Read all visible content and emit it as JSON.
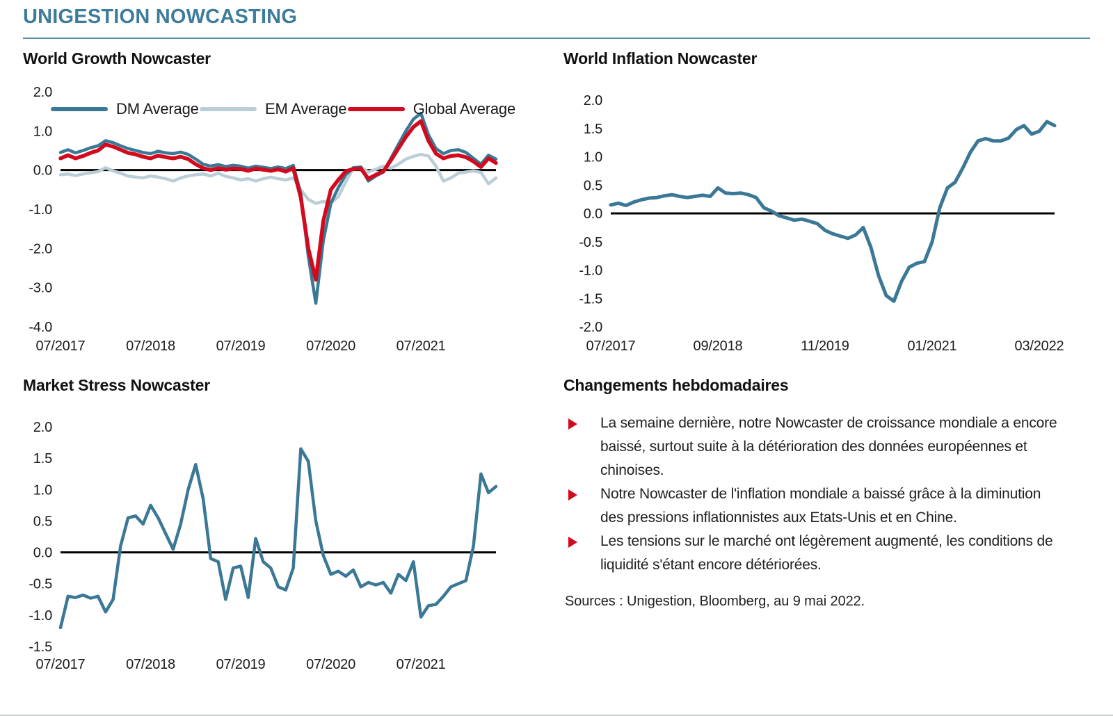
{
  "page": {
    "title": "UNIGESTION NOWCASTING"
  },
  "palette": {
    "accent_title": "#3e7c9b",
    "header_rule": "#5b8ba6",
    "teal_line": "#3a7895",
    "light_blue_line": "#bbcdd6",
    "red_line": "#d20a1e",
    "axis_black": "#000000"
  },
  "chart_data": [
    {
      "id": "world-growth-nowcaster",
      "type": "line",
      "title": "World Growth Nowcaster",
      "ylim": [
        -4.0,
        2.0
      ],
      "yticks": [
        "2.0",
        "1.0",
        "0.0",
        "-1.0",
        "-2.0",
        "-3.0",
        "-4.0"
      ],
      "x_months": 58,
      "x_tick_months": [
        0,
        12,
        24,
        36,
        48
      ],
      "x_tick_labels": [
        "07/2017",
        "07/2018",
        "07/2019",
        "07/2020",
        "07/2021"
      ],
      "grid": false,
      "zero_line": true,
      "legend_position": "top-inside",
      "series": [
        {
          "name": "DM Average",
          "color": "#3a7895",
          "stroke_width": 4.5,
          "layer": 1,
          "values": [
            0.45,
            0.52,
            0.44,
            0.5,
            0.57,
            0.62,
            0.75,
            0.7,
            0.62,
            0.55,
            0.5,
            0.45,
            0.42,
            0.48,
            0.44,
            0.42,
            0.46,
            0.4,
            0.28,
            0.15,
            0.1,
            0.14,
            0.09,
            0.12,
            0.1,
            0.05,
            0.1,
            0.07,
            0.04,
            0.08,
            0.04,
            0.12,
            -0.6,
            -2.2,
            -3.4,
            -1.8,
            -0.85,
            -0.45,
            -0.12,
            0.06,
            0.08,
            -0.28,
            -0.15,
            -0.05,
            0.3,
            0.65,
            1.0,
            1.3,
            1.45,
            0.9,
            0.55,
            0.42,
            0.5,
            0.52,
            0.45,
            0.3,
            0.15,
            0.38,
            0.28
          ]
        },
        {
          "name": "EM Average",
          "color": "#bbcdd6",
          "stroke_width": 4.5,
          "layer": 0,
          "values": [
            -0.12,
            -0.1,
            -0.14,
            -0.1,
            -0.07,
            -0.04,
            0.06,
            -0.02,
            -0.08,
            -0.15,
            -0.18,
            -0.2,
            -0.15,
            -0.18,
            -0.22,
            -0.28,
            -0.2,
            -0.15,
            -0.12,
            -0.1,
            -0.15,
            -0.08,
            -0.16,
            -0.2,
            -0.25,
            -0.22,
            -0.28,
            -0.22,
            -0.18,
            -0.22,
            -0.25,
            -0.2,
            -0.5,
            -0.75,
            -0.85,
            -0.8,
            -0.85,
            -0.68,
            -0.3,
            0.05,
            0.08,
            -0.05,
            0.02,
            0.1,
            0.05,
            0.15,
            0.28,
            0.35,
            0.4,
            0.36,
            0.1,
            -0.28,
            -0.2,
            -0.08,
            -0.05,
            -0.02,
            -0.06,
            -0.35,
            -0.2
          ]
        },
        {
          "name": "Global Average",
          "color": "#d20a1e",
          "stroke_width": 5.5,
          "layer": 2,
          "values": [
            0.3,
            0.38,
            0.3,
            0.36,
            0.44,
            0.5,
            0.65,
            0.6,
            0.52,
            0.44,
            0.4,
            0.34,
            0.3,
            0.37,
            0.33,
            0.3,
            0.34,
            0.28,
            0.15,
            0.05,
            0.0,
            0.05,
            0.01,
            0.04,
            0.03,
            -0.02,
            0.04,
            0.01,
            -0.02,
            0.02,
            -0.04,
            0.05,
            -0.7,
            -2.0,
            -2.8,
            -1.3,
            -0.5,
            -0.25,
            -0.03,
            0.03,
            0.04,
            -0.22,
            -0.12,
            -0.03,
            0.25,
            0.55,
            0.85,
            1.1,
            1.25,
            0.75,
            0.42,
            0.3,
            0.36,
            0.38,
            0.33,
            0.22,
            0.08,
            0.3,
            0.18
          ]
        }
      ]
    },
    {
      "id": "world-inflation-nowcaster",
      "type": "line",
      "title": "World Inflation Nowcaster",
      "ylim": [
        -2.0,
        2.0
      ],
      "yticks": [
        "2.0",
        "1.5",
        "1.0",
        "0.5",
        "0.0",
        "-0.5",
        "-1.0",
        "-1.5",
        "-2.0"
      ],
      "x_months": 58,
      "x_tick_months": [
        0,
        14,
        28,
        42,
        56
      ],
      "x_tick_labels": [
        "07/2017",
        "09/2018",
        "11/2019",
        "01/2021",
        "03/2022"
      ],
      "grid": false,
      "zero_line": true,
      "legend_position": "none",
      "series": [
        {
          "name": "World Inflation Nowcaster",
          "color": "#3a7895",
          "stroke_width": 5,
          "layer": 1,
          "values": [
            0.15,
            0.18,
            0.14,
            0.2,
            0.24,
            0.27,
            0.28,
            0.31,
            0.33,
            0.3,
            0.28,
            0.3,
            0.32,
            0.3,
            0.45,
            0.36,
            0.35,
            0.36,
            0.33,
            0.28,
            0.1,
            0.04,
            -0.04,
            -0.08,
            -0.12,
            -0.1,
            -0.14,
            -0.18,
            -0.3,
            -0.36,
            -0.4,
            -0.44,
            -0.38,
            -0.25,
            -0.6,
            -1.1,
            -1.45,
            -1.55,
            -1.2,
            -0.95,
            -0.88,
            -0.85,
            -0.5,
            0.1,
            0.45,
            0.55,
            0.8,
            1.08,
            1.28,
            1.32,
            1.28,
            1.28,
            1.33,
            1.48,
            1.55,
            1.4,
            1.45,
            1.62,
            1.55
          ]
        }
      ]
    },
    {
      "id": "market-stress-nowcaster",
      "type": "line",
      "title": "Market Stress Nowcaster",
      "ylim": [
        -1.5,
        2.0
      ],
      "yticks": [
        "2.0",
        "1.5",
        "1.0",
        "0.5",
        "0.0",
        "-0.5",
        "-1.0",
        "-1.5"
      ],
      "x_months": 58,
      "x_tick_months": [
        0,
        12,
        24,
        36,
        48
      ],
      "x_tick_labels": [
        "07/2017",
        "07/2018",
        "07/2019",
        "07/2020",
        "07/2021"
      ],
      "grid": false,
      "zero_line": true,
      "legend_position": "none",
      "series": [
        {
          "name": "Market Stress Nowcaster",
          "color": "#3a7895",
          "stroke_width": 4.5,
          "layer": 1,
          "values": [
            -1.2,
            -0.7,
            -0.72,
            -0.68,
            -0.73,
            -0.7,
            -0.95,
            -0.75,
            0.1,
            0.55,
            0.58,
            0.45,
            0.75,
            0.55,
            0.3,
            0.05,
            0.45,
            1.0,
            1.4,
            0.85,
            -0.1,
            -0.15,
            -0.75,
            -0.25,
            -0.22,
            -0.72,
            0.22,
            -0.15,
            -0.25,
            -0.55,
            -0.6,
            -0.25,
            1.65,
            1.45,
            0.5,
            -0.05,
            -0.35,
            -0.3,
            -0.38,
            -0.28,
            -0.55,
            -0.48,
            -0.52,
            -0.48,
            -0.65,
            -0.35,
            -0.45,
            -0.15,
            -1.03,
            -0.85,
            -0.83,
            -0.7,
            -0.55,
            -0.5,
            -0.45,
            0.1,
            1.25,
            0.95,
            1.05
          ]
        }
      ]
    }
  ],
  "weekly_changes": {
    "title": "Changements hebdomadaires",
    "bullets": [
      "La semaine dernière, notre Nowcaster de croissance mondiale a encore baissé, surtout suite à la détérioration des données européennes et chinoises.",
      "Notre Nowcaster de l'inflation mondiale a baissé grâce à la diminution des pressions inflationnistes aux Etats-Unis et en Chine.",
      "Les tensions sur le marché ont légèrement augmenté, les conditions de liquidité s'étant encore détériorées."
    ],
    "sources": "Sources : Unigestion, Bloomberg, au 9 mai 2022."
  }
}
